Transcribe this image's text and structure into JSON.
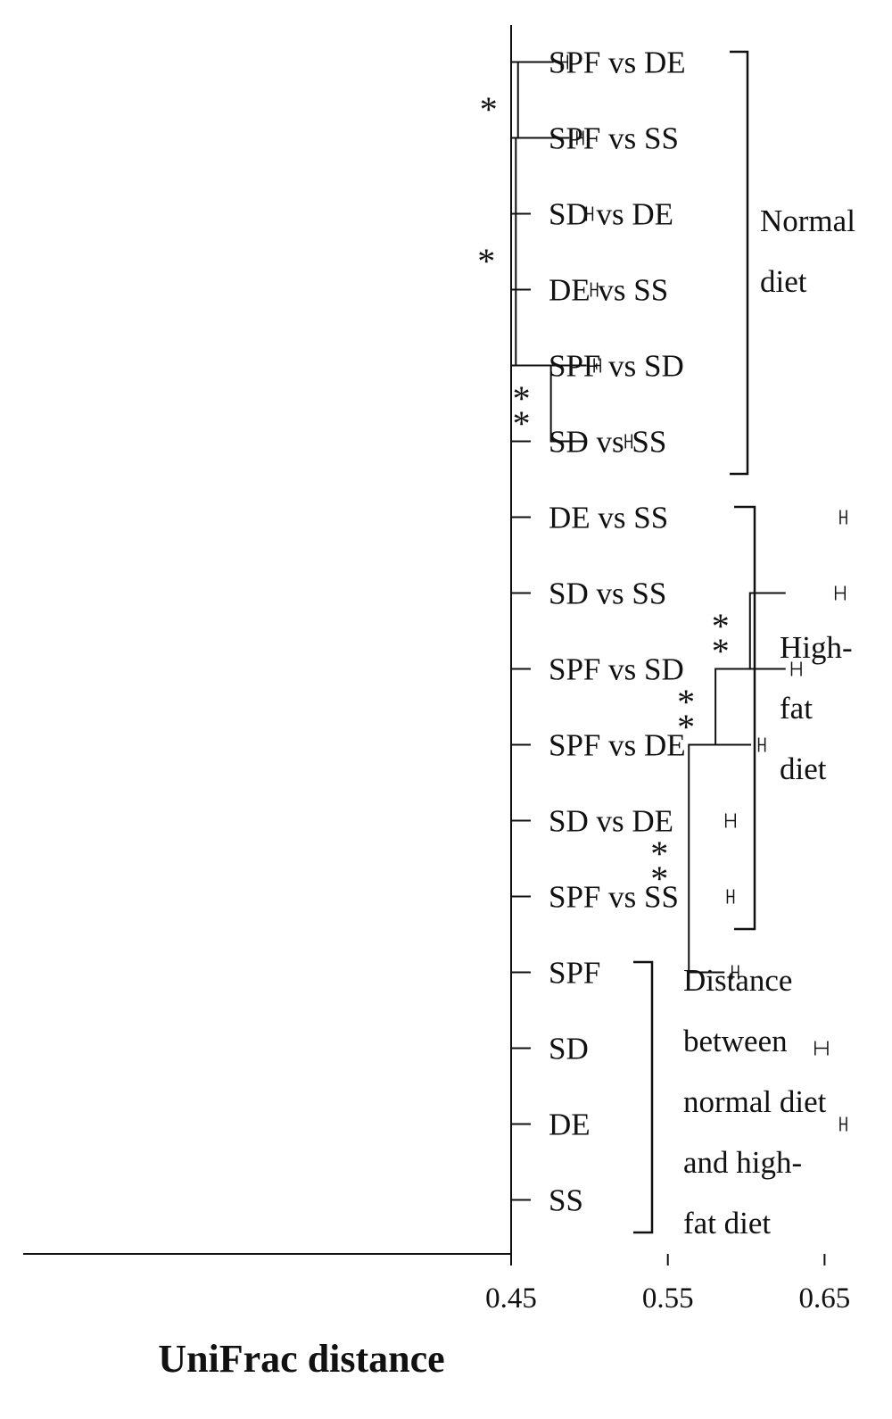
{
  "chart_data": {
    "type": "bar",
    "orientation": "horizontal",
    "xlabel": "UniFrac distance",
    "xlim": [
      0.75,
      0.45
    ],
    "x_reversed": true,
    "xticks": [
      "0.75",
      "0.65",
      "0.55",
      "0.45"
    ],
    "xtick_values": [
      0.75,
      0.65,
      0.55,
      0.45
    ],
    "colors": {
      "normal": "#111111",
      "high_fat": "#999999",
      "between": "#ffffff",
      "stroke": "#111111"
    },
    "bars": [
      {
        "label": "SPF vs DE",
        "value": 0.484,
        "error": 0.002,
        "group": "normal"
      },
      {
        "label": "SPF vs SS",
        "value": 0.494,
        "error": 0.002,
        "group": "normal"
      },
      {
        "label": "SD vs DE",
        "value": 0.5,
        "error": 0.002,
        "group": "normal"
      },
      {
        "label": "DE vs SS",
        "value": 0.503,
        "error": 0.002,
        "group": "normal"
      },
      {
        "label": "SPF vs SD",
        "value": 0.505,
        "error": 0.002,
        "group": "normal"
      },
      {
        "label": "SD vs SS",
        "value": 0.525,
        "error": 0.002,
        "group": "normal"
      },
      {
        "label": "DE vs SS",
        "value": 0.662,
        "error": 0.002,
        "group": "high_fat"
      },
      {
        "label": "SD vs SS",
        "value": 0.66,
        "error": 0.003,
        "group": "high_fat"
      },
      {
        "label": "SPF vs SD",
        "value": 0.632,
        "error": 0.003,
        "group": "high_fat"
      },
      {
        "label": "SPF vs DE",
        "value": 0.61,
        "error": 0.002,
        "group": "high_fat"
      },
      {
        "label": "SD vs DE",
        "value": 0.59,
        "error": 0.003,
        "group": "high_fat"
      },
      {
        "label": "SPF vs SS",
        "value": 0.59,
        "error": 0.002,
        "group": "high_fat"
      },
      {
        "label": "SPF",
        "value": 0.593,
        "error": 0.002,
        "group": "between"
      },
      {
        "label": "SD",
        "value": 0.648,
        "error": 0.004,
        "group": "between"
      },
      {
        "label": "DE",
        "value": 0.662,
        "error": 0.002,
        "group": "between"
      },
      {
        "label": "SS",
        "value": 0.727,
        "error": 0.002,
        "group": "between"
      }
    ],
    "group_labels": [
      {
        "group": "normal",
        "lines": [
          "Normal",
          "diet"
        ]
      },
      {
        "group": "high_fat",
        "lines": [
          "High-",
          "fat",
          "diet"
        ]
      },
      {
        "group": "between",
        "lines": [
          "Distance",
          "between",
          "normal diet",
          "and high-",
          "fat diet"
        ]
      }
    ],
    "significance": [
      {
        "from": 0,
        "to": 1,
        "label": "*"
      },
      {
        "from": 1,
        "to": 4,
        "label": "*"
      },
      {
        "from": 4,
        "to": 5,
        "label": "**"
      },
      {
        "from": 7,
        "to": 8,
        "label": "**"
      },
      {
        "from": 8,
        "to": 9,
        "label": "**"
      },
      {
        "from": 9,
        "to": 12,
        "label": "**"
      }
    ]
  }
}
